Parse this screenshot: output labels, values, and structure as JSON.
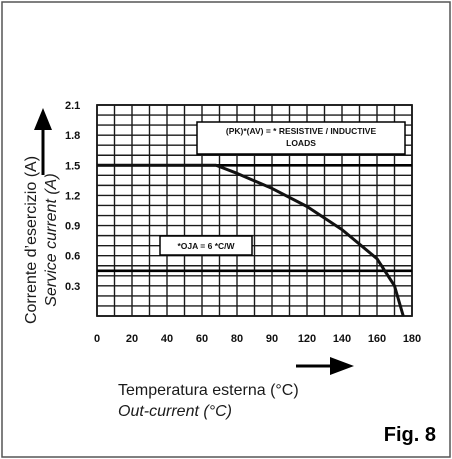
{
  "figure_label": "Fig. 8",
  "ylabel_italian": "Corrente d’esercizio (A)",
  "ylabel_english": "Service current (A)",
  "xlabel_italian": "Temperatura esterna (°C)",
  "xlabel_english": "Out-current (°C)",
  "chart_data": {
    "type": "line",
    "xlim": [
      0,
      180
    ],
    "ylim": [
      0,
      2.1
    ],
    "x_ticks": [
      "0",
      "20",
      "40",
      "60",
      "80",
      "90",
      "120",
      "140",
      "160",
      "180"
    ],
    "y_ticks": [
      "0.3",
      "0.6",
      "0.9",
      "1.2",
      "1.5",
      "1.8",
      "2.1"
    ],
    "grid": true,
    "series": [
      {
        "x": [
          0,
          68,
          80,
          100,
          120,
          140,
          160,
          170,
          175
        ],
        "y": [
          1.5,
          1.5,
          1.42,
          1.27,
          1.09,
          0.86,
          0.57,
          0.3,
          0.0
        ]
      }
    ],
    "hlines": [
      1.5,
      0.45
    ],
    "annotations": [
      {
        "text": "(PK)*(AV) = * RESISTIVE / INDUCTIVE",
        "text2": "LOADS"
      },
      {
        "text": "*OJA = 6 *C/W"
      }
    ]
  },
  "colors": {
    "line": "#111111",
    "grid": "#1a1a1a",
    "frame": "#333333"
  }
}
